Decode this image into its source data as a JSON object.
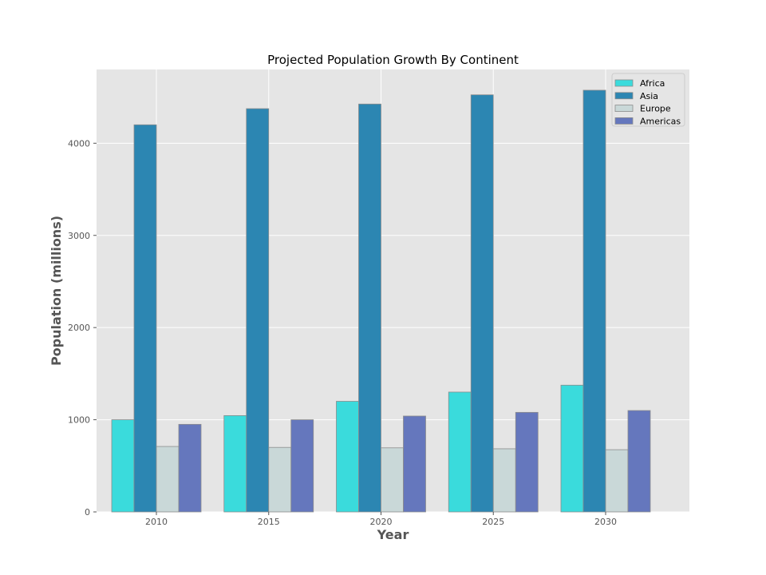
{
  "chart_data": {
    "type": "bar",
    "title": "Projected Population Growth By Continent",
    "xlabel": "Year",
    "ylabel": "Population (millions)",
    "categories": [
      "2010",
      "2015",
      "2020",
      "2025",
      "2030"
    ],
    "series": [
      {
        "name": "Africa",
        "color": "#3adbdc",
        "values": [
          1000,
          1045,
          1200,
          1300,
          1375
        ]
      },
      {
        "name": "Asia",
        "color": "#2c86b2",
        "values": [
          4200,
          4375,
          4425,
          4525,
          4575
        ]
      },
      {
        "name": "Europe",
        "color": "#c9d8d8",
        "values": [
          710,
          700,
          695,
          685,
          675
        ]
      },
      {
        "name": "Americas",
        "color": "#6577bd",
        "values": [
          950,
          1000,
          1040,
          1080,
          1100
        ]
      }
    ],
    "ylim": [
      0,
      4800
    ],
    "yticks": [
      0,
      1000,
      2000,
      3000,
      4000
    ],
    "grid": true,
    "legend": "top-right",
    "background": "#e5e5e5"
  }
}
